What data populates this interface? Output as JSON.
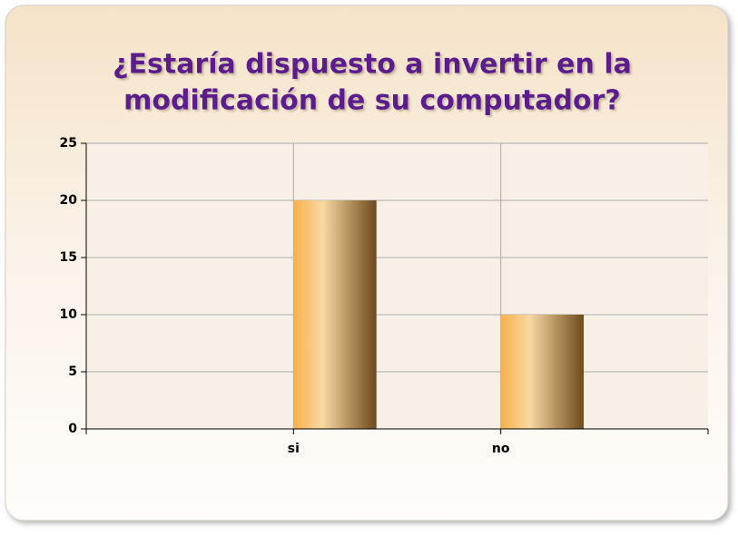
{
  "chart_data": {
    "type": "bar",
    "title": [
      "¿Estaría dispuesto a invertir en la",
      "modificación de su computador?"
    ],
    "categories": [
      "si",
      "no"
    ],
    "values": [
      20,
      10
    ],
    "color": "#f8b04a",
    "ylim": [
      0,
      25
    ],
    "yticks": [
      0,
      5,
      10,
      15,
      20,
      25
    ],
    "grid": true
  }
}
